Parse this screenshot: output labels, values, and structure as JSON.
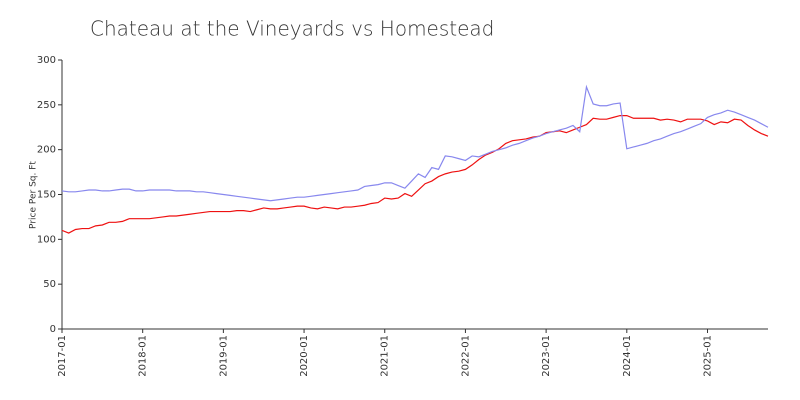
{
  "chart_data": {
    "type": "line",
    "title": "Chateau at the Vineyards vs Homestead",
    "ylabel": "Price Per Sq. Ft",
    "x": [
      "2017-01",
      "2017-02",
      "2017-03",
      "2017-04",
      "2017-05",
      "2017-06",
      "2017-07",
      "2017-08",
      "2017-09",
      "2017-10",
      "2017-11",
      "2017-12",
      "2018-01",
      "2018-02",
      "2018-03",
      "2018-04",
      "2018-05",
      "2018-06",
      "2018-07",
      "2018-08",
      "2018-09",
      "2018-10",
      "2018-11",
      "2018-12",
      "2019-01",
      "2019-02",
      "2019-03",
      "2019-04",
      "2019-05",
      "2019-06",
      "2019-07",
      "2019-08",
      "2019-09",
      "2019-10",
      "2019-11",
      "2019-12",
      "2020-01",
      "2020-02",
      "2020-03",
      "2020-04",
      "2020-05",
      "2020-06",
      "2020-07",
      "2020-08",
      "2020-09",
      "2020-10",
      "2020-11",
      "2020-12",
      "2021-01",
      "2021-02",
      "2021-03",
      "2021-04",
      "2021-05",
      "2021-06",
      "2021-07",
      "2021-08",
      "2021-09",
      "2021-10",
      "2021-11",
      "2021-12",
      "2022-01",
      "2022-02",
      "2022-03",
      "2022-04",
      "2022-05",
      "2022-06",
      "2022-07",
      "2022-08",
      "2022-09",
      "2022-10",
      "2022-11",
      "2022-12",
      "2023-01",
      "2023-02",
      "2023-03",
      "2023-04",
      "2023-05",
      "2023-06",
      "2023-07",
      "2023-08",
      "2023-09",
      "2023-10",
      "2023-11",
      "2023-12",
      "2024-01",
      "2024-02",
      "2024-03",
      "2024-04",
      "2024-05",
      "2024-06",
      "2024-07",
      "2024-08",
      "2024-09",
      "2024-10",
      "2024-11",
      "2024-12",
      "2025-01",
      "2025-02",
      "2025-03",
      "2025-04",
      "2025-05",
      "2025-06",
      "2025-07",
      "2025-08",
      "2025-09",
      "2025-10"
    ],
    "series": [
      {
        "color": "#ee1111",
        "values": [
          110,
          107,
          111,
          112,
          112,
          115,
          116,
          119,
          119,
          120,
          123,
          123,
          123,
          123,
          124,
          125,
          126,
          126,
          127,
          128,
          129,
          130,
          131,
          131,
          131,
          131,
          132,
          132,
          131,
          133,
          135,
          134,
          134,
          135,
          136,
          137,
          137,
          135,
          134,
          136,
          135,
          134,
          136,
          136,
          137,
          138,
          140,
          141,
          146,
          145,
          146,
          151,
          148,
          155,
          162,
          165,
          170,
          173,
          175,
          176,
          178,
          183,
          189,
          194,
          197,
          201,
          207,
          210,
          211,
          212,
          214,
          215,
          219,
          220,
          221,
          219,
          222,
          225,
          228,
          235,
          234,
          234,
          236,
          238,
          238,
          235,
          235,
          235,
          235,
          233,
          234,
          233,
          231,
          234,
          234,
          234,
          232,
          228,
          231,
          230,
          234,
          233,
          227,
          222,
          218,
          215
        ]
      },
      {
        "color": "#8888ee",
        "values": [
          154,
          153,
          153,
          154,
          155,
          155,
          154,
          154,
          155,
          156,
          156,
          154,
          154,
          155,
          155,
          155,
          155,
          154,
          154,
          154,
          153,
          153,
          152,
          151,
          150,
          149,
          148,
          147,
          146,
          145,
          144,
          143,
          144,
          145,
          146,
          147,
          147,
          148,
          149,
          150,
          151,
          152,
          153,
          154,
          155,
          159,
          160,
          161,
          163,
          163,
          160,
          157,
          165,
          173,
          169,
          180,
          178,
          193,
          192,
          190,
          188,
          193,
          192,
          195,
          198,
          200,
          202,
          205,
          207,
          210,
          213,
          215,
          218,
          220,
          222,
          224,
          227,
          220,
          270,
          251,
          249,
          249,
          251,
          252,
          201,
          203,
          205,
          207,
          210,
          212,
          215,
          218,
          220,
          223,
          226,
          229,
          236,
          239,
          241,
          244,
          242,
          239,
          236,
          233,
          229,
          225
        ]
      }
    ],
    "xlim": [
      "2017-01",
      "2025-10"
    ],
    "xticks": [
      "2017-01",
      "2018-01",
      "2019-01",
      "2020-01",
      "2021-01",
      "2022-01",
      "2023-01",
      "2024-01",
      "2025-01"
    ],
    "ylim": [
      0,
      300
    ],
    "yticks": [
      0,
      50,
      100,
      150,
      200,
      250,
      300
    ]
  }
}
